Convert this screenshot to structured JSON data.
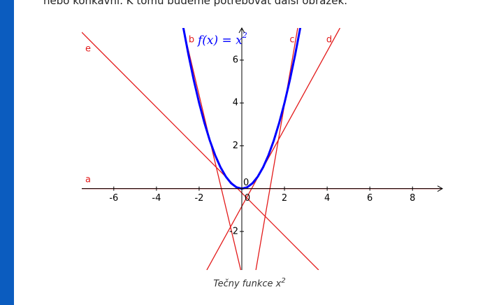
{
  "intro": "nebo konkávní. K tomu budeme potřebovat další obrázek.",
  "caption": {
    "text": "Tečny funkce x",
    "sup": "2"
  },
  "chart_data": {
    "type": "line",
    "xlim": [
      -7.5,
      9.4
    ],
    "ylim": [
      -3.8,
      7.5
    ],
    "xticks": [
      -6,
      -4,
      -2,
      0,
      2,
      4,
      6,
      8
    ],
    "yticks": [
      -2,
      0,
      2,
      4,
      6
    ],
    "function_label": {
      "text": "f(x)  =  x",
      "sup": "2"
    },
    "series": [
      {
        "name": "f",
        "color": "#0000ff",
        "x": [
          -2.75,
          -2.5,
          -2.25,
          -2,
          -1.75,
          -1.5,
          -1.25,
          -1,
          -0.75,
          -0.5,
          -0.25,
          0,
          0.25,
          0.5,
          0.75,
          1,
          1.25,
          1.5,
          1.75,
          2,
          2.25,
          2.5,
          2.75
        ],
        "values": [
          7.5625,
          6.25,
          5.0625,
          4,
          3.0625,
          2.25,
          1.5625,
          1,
          0.5625,
          0.25,
          0.0625,
          0,
          0.0625,
          0.25,
          0.5625,
          1,
          1.5625,
          2.25,
          3.0625,
          4,
          5.0625,
          6.25,
          7.5625
        ]
      },
      {
        "name": "a",
        "color": "#e31b1b",
        "x": [
          -7.5,
          9.4
        ],
        "values": [
          0,
          0
        ]
      },
      {
        "name": "b",
        "color": "#e31b1b",
        "x": [
          -2.75,
          -0.05
        ],
        "values": [
          7.5,
          -3.8
        ]
      },
      {
        "name": "c",
        "color": "#e31b1b",
        "x": [
          0.66,
          2.62
        ],
        "values": [
          -3.8,
          7.5
        ]
      },
      {
        "name": "d",
        "color": "#e31b1b",
        "x": [
          -1.64,
          4.6
        ],
        "values": [
          -3.8,
          7.5
        ]
      },
      {
        "name": "e",
        "color": "#e31b1b",
        "x": [
          -7.5,
          3.6
        ],
        "values": [
          7.3,
          -3.8
        ]
      }
    ]
  }
}
